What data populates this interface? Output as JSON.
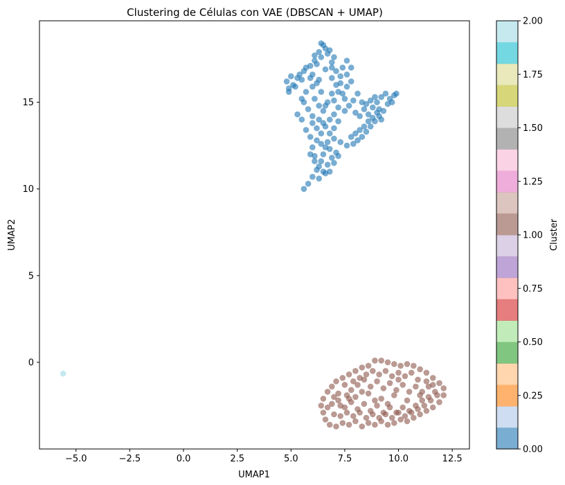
{
  "chart_data": {
    "type": "scatter",
    "title": "Clustering de Células con VAE (DBSCAN + UMAP)",
    "xlabel": "UMAP1",
    "ylabel": "UMAP2",
    "xlim": [
      -6.7,
      13.3
    ],
    "ylim": [
      -5.0,
      19.7
    ],
    "x_ticks": [
      {
        "value": -5.0,
        "label": "−5.0"
      },
      {
        "value": -2.5,
        "label": "−2.5"
      },
      {
        "value": 0.0,
        "label": "0.0"
      },
      {
        "value": 2.5,
        "label": "2.5"
      },
      {
        "value": 5.0,
        "label": "5.0"
      },
      {
        "value": 7.5,
        "label": "7.5"
      },
      {
        "value": 10.0,
        "label": "10.0"
      },
      {
        "value": 12.5,
        "label": "12.5"
      }
    ],
    "y_ticks": [
      {
        "value": 0,
        "label": "0"
      },
      {
        "value": 5,
        "label": "5"
      },
      {
        "value": 10,
        "label": "10"
      },
      {
        "value": 15,
        "label": "15"
      }
    ],
    "grid": false,
    "series": [
      {
        "cluster": 0,
        "color": "#1f77b4",
        "points": [
          [
            4.8,
            16.2
          ],
          [
            5.0,
            16.5
          ],
          [
            5.3,
            16.4
          ],
          [
            5.6,
            16.8
          ],
          [
            5.9,
            17.1
          ],
          [
            6.1,
            17.4
          ],
          [
            6.3,
            17.9
          ],
          [
            6.5,
            18.3
          ],
          [
            6.7,
            17.8
          ],
          [
            6.9,
            17.3
          ],
          [
            6.6,
            16.9
          ],
          [
            6.3,
            16.3
          ],
          [
            6.0,
            15.9
          ],
          [
            5.7,
            15.6
          ],
          [
            5.5,
            15.2
          ],
          [
            4.9,
            15.6
          ],
          [
            5.2,
            15.9
          ],
          [
            5.6,
            15.0
          ],
          [
            5.8,
            14.6
          ],
          [
            6.0,
            14.2
          ],
          [
            6.3,
            14.0
          ],
          [
            6.5,
            14.5
          ],
          [
            6.7,
            15.0
          ],
          [
            6.9,
            15.5
          ],
          [
            7.1,
            16.0
          ],
          [
            7.3,
            16.5
          ],
          [
            7.4,
            17.0
          ],
          [
            7.6,
            17.4
          ],
          [
            7.8,
            17.0
          ],
          [
            7.6,
            16.6
          ],
          [
            7.3,
            16.1
          ],
          [
            7.2,
            15.6
          ],
          [
            7.5,
            15.2
          ],
          [
            7.7,
            14.8
          ],
          [
            7.9,
            15.1
          ],
          [
            8.1,
            15.5
          ],
          [
            8.3,
            15.0
          ],
          [
            8.4,
            14.6
          ],
          [
            8.6,
            14.3
          ],
          [
            8.8,
            14.7
          ],
          [
            9.0,
            15.0
          ],
          [
            9.2,
            15.3
          ],
          [
            9.4,
            15.5
          ],
          [
            9.6,
            15.2
          ],
          [
            9.8,
            15.4
          ],
          [
            9.9,
            15.5
          ],
          [
            9.5,
            14.9
          ],
          [
            9.3,
            14.5
          ],
          [
            9.1,
            14.2
          ],
          [
            8.9,
            13.9
          ],
          [
            8.7,
            13.6
          ],
          [
            8.5,
            13.3
          ],
          [
            8.3,
            13.0
          ],
          [
            8.1,
            12.8
          ],
          [
            7.9,
            12.6
          ],
          [
            7.6,
            12.5
          ],
          [
            7.3,
            12.7
          ],
          [
            7.0,
            12.9
          ],
          [
            6.8,
            13.2
          ],
          [
            6.6,
            13.6
          ],
          [
            6.4,
            13.2
          ],
          [
            6.2,
            12.8
          ],
          [
            6.0,
            12.4
          ],
          [
            5.9,
            12.0
          ],
          [
            6.1,
            11.6
          ],
          [
            6.3,
            11.3
          ],
          [
            6.5,
            11.0
          ],
          [
            6.7,
            11.4
          ],
          [
            6.9,
            11.8
          ],
          [
            7.1,
            12.1
          ],
          [
            6.8,
            12.3
          ],
          [
            6.5,
            12.0
          ],
          [
            6.2,
            11.1
          ],
          [
            6.0,
            10.7
          ],
          [
            5.8,
            10.3
          ],
          [
            5.6,
            10.0
          ],
          [
            6.3,
            10.6
          ],
          [
            6.6,
            10.9
          ],
          [
            7.0,
            11.5
          ],
          [
            7.2,
            11.9
          ],
          [
            6.6,
            12.4
          ],
          [
            6.4,
            12.6
          ],
          [
            6.7,
            12.7
          ],
          [
            7.0,
            13.5
          ],
          [
            7.2,
            13.9
          ],
          [
            7.0,
            14.3
          ],
          [
            6.8,
            14.0
          ],
          [
            6.5,
            13.8
          ],
          [
            6.2,
            13.5
          ],
          [
            5.9,
            13.0
          ],
          [
            5.7,
            13.4
          ],
          [
            5.5,
            14.0
          ],
          [
            5.3,
            14.3
          ],
          [
            6.1,
            15.2
          ],
          [
            6.4,
            15.6
          ],
          [
            6.2,
            16.1
          ],
          [
            5.9,
            16.4
          ],
          [
            5.4,
            16.6
          ],
          [
            5.1,
            16.0
          ],
          [
            4.9,
            15.8
          ],
          [
            6.9,
            16.4
          ],
          [
            7.1,
            16.8
          ],
          [
            7.0,
            17.6
          ],
          [
            6.8,
            18.0
          ],
          [
            6.6,
            18.1
          ],
          [
            6.4,
            17.6
          ],
          [
            6.2,
            17.2
          ],
          [
            6.0,
            16.6
          ],
          [
            7.4,
            15.5
          ],
          [
            7.6,
            15.9
          ],
          [
            8.0,
            14.4
          ],
          [
            8.2,
            14.2
          ],
          [
            8.6,
            13.9
          ],
          [
            8.8,
            14.1
          ],
          [
            9.1,
            14.6
          ],
          [
            8.7,
            15.1
          ],
          [
            8.9,
            15.3
          ],
          [
            9.0,
            14.4
          ],
          [
            9.2,
            14.0
          ],
          [
            8.4,
            13.6
          ],
          [
            8.2,
            13.4
          ],
          [
            8.0,
            13.2
          ],
          [
            7.8,
            13.0
          ],
          [
            6.8,
            11.0
          ],
          [
            6.4,
            11.6
          ],
          [
            6.1,
            11.9
          ],
          [
            6.0,
            13.8
          ],
          [
            6.6,
            14.8
          ],
          [
            7.0,
            15.1
          ],
          [
            7.8,
            16.2
          ],
          [
            8.5,
            14.9
          ],
          [
            9.7,
            15.0
          ],
          [
            5.7,
            17.0
          ],
          [
            6.1,
            17.7
          ],
          [
            6.4,
            18.4
          ],
          [
            6.9,
            17.0
          ],
          [
            5.5,
            16.3
          ],
          [
            7.5,
            14.5
          ],
          [
            7.2,
            14.7
          ],
          [
            6.3,
            14.8
          ]
        ]
      },
      {
        "cluster": 1,
        "color": "#8c564b",
        "points": [
          [
            6.4,
            -2.5
          ],
          [
            6.5,
            -2.9
          ],
          [
            6.6,
            -3.3
          ],
          [
            6.8,
            -3.6
          ],
          [
            7.1,
            -3.7
          ],
          [
            7.4,
            -3.5
          ],
          [
            7.7,
            -3.6
          ],
          [
            8.0,
            -3.4
          ],
          [
            8.3,
            -3.7
          ],
          [
            8.6,
            -3.5
          ],
          [
            8.9,
            -3.6
          ],
          [
            9.2,
            -3.4
          ],
          [
            9.5,
            -3.6
          ],
          [
            9.8,
            -3.5
          ],
          [
            10.1,
            -3.3
          ],
          [
            10.4,
            -3.4
          ],
          [
            10.7,
            -3.2
          ],
          [
            11.0,
            -3.0
          ],
          [
            11.3,
            -2.8
          ],
          [
            11.6,
            -2.6
          ],
          [
            11.9,
            -2.3
          ],
          [
            12.1,
            -1.9
          ],
          [
            12.1,
            -1.5
          ],
          [
            11.9,
            -1.2
          ],
          [
            11.6,
            -0.9
          ],
          [
            11.3,
            -0.6
          ],
          [
            11.0,
            -0.4
          ],
          [
            10.7,
            -0.2
          ],
          [
            10.4,
            -0.1
          ],
          [
            10.1,
            -0.2
          ],
          [
            9.8,
            -0.1
          ],
          [
            9.5,
            0.0
          ],
          [
            9.2,
            0.1
          ],
          [
            8.9,
            0.1
          ],
          [
            8.6,
            -0.2
          ],
          [
            8.3,
            -0.3
          ],
          [
            8.0,
            -0.5
          ],
          [
            7.7,
            -0.7
          ],
          [
            7.4,
            -0.9
          ],
          [
            7.1,
            -1.1
          ],
          [
            6.9,
            -1.4
          ],
          [
            6.7,
            -1.7
          ],
          [
            6.5,
            -2.1
          ],
          [
            6.9,
            -2.4
          ],
          [
            7.2,
            -2.2
          ],
          [
            7.5,
            -2.6
          ],
          [
            7.8,
            -2.3
          ],
          [
            8.1,
            -2.7
          ],
          [
            8.4,
            -2.4
          ],
          [
            8.7,
            -2.8
          ],
          [
            9.0,
            -2.5
          ],
          [
            9.3,
            -2.9
          ],
          [
            9.6,
            -2.6
          ],
          [
            9.9,
            -2.9
          ],
          [
            10.2,
            -2.6
          ],
          [
            10.5,
            -2.8
          ],
          [
            10.8,
            -2.5
          ],
          [
            11.1,
            -2.2
          ],
          [
            11.4,
            -2.0
          ],
          [
            11.7,
            -1.7
          ],
          [
            11.4,
            -1.4
          ],
          [
            11.1,
            -1.7
          ],
          [
            10.8,
            -1.4
          ],
          [
            10.5,
            -1.7
          ],
          [
            10.2,
            -1.3
          ],
          [
            9.9,
            -1.6
          ],
          [
            9.6,
            -1.2
          ],
          [
            9.3,
            -1.5
          ],
          [
            9.0,
            -1.1
          ],
          [
            8.7,
            -1.4
          ],
          [
            8.4,
            -1.0
          ],
          [
            8.1,
            -1.3
          ],
          [
            7.8,
            -1.6
          ],
          [
            7.5,
            -1.3
          ],
          [
            7.2,
            -1.8
          ],
          [
            7.0,
            -3.0
          ],
          [
            7.3,
            -3.1
          ],
          [
            7.6,
            -2.9
          ],
          [
            7.9,
            -3.1
          ],
          [
            8.2,
            -2.9
          ],
          [
            8.5,
            -3.2
          ],
          [
            8.8,
            -3.0
          ],
          [
            9.1,
            -3.2
          ],
          [
            9.4,
            -3.0
          ],
          [
            9.7,
            -3.2
          ],
          [
            10.0,
            -2.9
          ],
          [
            10.3,
            -3.1
          ],
          [
            10.6,
            -2.9
          ],
          [
            10.9,
            -2.7
          ],
          [
            11.2,
            -2.5
          ],
          [
            11.5,
            -2.2
          ],
          [
            11.8,
            -1.9
          ],
          [
            10.6,
            -0.6
          ],
          [
            10.3,
            -0.8
          ],
          [
            10.0,
            -0.6
          ],
          [
            9.7,
            -0.8
          ],
          [
            9.4,
            -0.5
          ],
          [
            9.1,
            -0.7
          ],
          [
            8.8,
            -0.5
          ],
          [
            8.5,
            -0.7
          ],
          [
            8.2,
            -0.9
          ],
          [
            7.9,
            -1.1
          ],
          [
            7.6,
            -1.9
          ],
          [
            7.3,
            -2.5
          ],
          [
            7.0,
            -2.0
          ],
          [
            6.7,
            -2.6
          ],
          [
            8.0,
            -2.0
          ],
          [
            8.6,
            -1.8
          ],
          [
            9.2,
            -2.1
          ],
          [
            9.8,
            -1.9
          ],
          [
            10.4,
            -2.2
          ],
          [
            11.0,
            -1.9
          ],
          [
            11.3,
            -1.1
          ],
          [
            10.9,
            -1.0
          ],
          [
            9.5,
            -2.4
          ],
          [
            8.9,
            -2.2
          ],
          [
            8.3,
            -1.7
          ],
          [
            7.7,
            -2.1
          ],
          [
            10.0,
            -1.0
          ],
          [
            11.6,
            -1.3
          ]
        ]
      },
      {
        "cluster": 2,
        "color": "#9edae5",
        "points": [
          [
            -5.6,
            -0.65
          ]
        ]
      }
    ],
    "colorbar": {
      "label": "Cluster",
      "range": [
        0.0,
        2.0
      ],
      "ticks": [
        {
          "value": 0.0,
          "label": "0.00"
        },
        {
          "value": 0.25,
          "label": "0.25"
        },
        {
          "value": 0.5,
          "label": "0.50"
        },
        {
          "value": 0.75,
          "label": "0.75"
        },
        {
          "value": 1.0,
          "label": "1.00"
        },
        {
          "value": 1.25,
          "label": "1.25"
        },
        {
          "value": 1.5,
          "label": "1.50"
        },
        {
          "value": 1.75,
          "label": "1.75"
        },
        {
          "value": 2.0,
          "label": "2.00"
        }
      ],
      "colormap": "tab20",
      "colors": [
        "#1f77b4",
        "#aec7e8",
        "#ff7f0e",
        "#ffbb78",
        "#2ca02c",
        "#98df8a",
        "#d62728",
        "#ff9896",
        "#9467bd",
        "#c5b0d5",
        "#8c564b",
        "#c49c94",
        "#e377c2",
        "#f7b6d2",
        "#7f7f7f",
        "#c7c7c7",
        "#bcbd22",
        "#dbdb8d",
        "#17becf",
        "#9edae5"
      ]
    }
  }
}
